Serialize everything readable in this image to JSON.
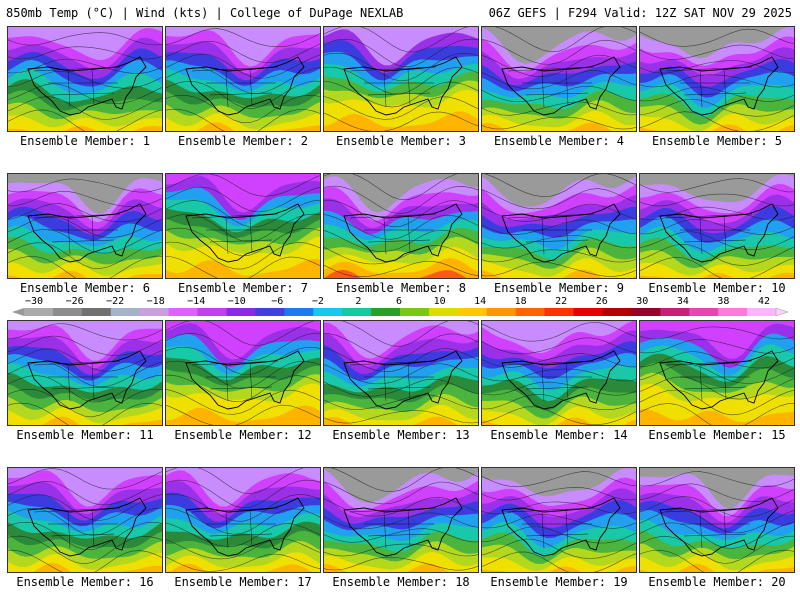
{
  "header": {
    "left_title": "850mb Temp (°C) | Wind (kts) | College of DuPage NEXLAB",
    "right_title": "06Z GEFS | F294 Valid: 12Z SAT NOV 29 2025"
  },
  "member_label_prefix": "Ensemble Member:",
  "members": [
    {
      "number": "1",
      "cold_extent": "moderate"
    },
    {
      "number": "2",
      "cold_extent": "moderate"
    },
    {
      "number": "3",
      "cold_extent": "east-trough"
    },
    {
      "number": "4",
      "cold_extent": "strong"
    },
    {
      "number": "5",
      "cold_extent": "strong"
    },
    {
      "number": "6",
      "cold_extent": "strong"
    },
    {
      "number": "7",
      "cold_extent": "weak"
    },
    {
      "number": "8",
      "cold_extent": "north-only"
    },
    {
      "number": "9",
      "cold_extent": "strong"
    },
    {
      "number": "10",
      "cold_extent": "strong"
    },
    {
      "number": "11",
      "cold_extent": "moderate"
    },
    {
      "number": "12",
      "cold_extent": "weak"
    },
    {
      "number": "13",
      "cold_extent": "moderate"
    },
    {
      "number": "14",
      "cold_extent": "moderate"
    },
    {
      "number": "15",
      "cold_extent": "weak"
    },
    {
      "number": "16",
      "cold_extent": "moderate"
    },
    {
      "number": "17",
      "cold_extent": "moderate"
    },
    {
      "number": "18",
      "cold_extent": "strong"
    },
    {
      "number": "19",
      "cold_extent": "strong"
    },
    {
      "number": "20",
      "cold_extent": "strong"
    }
  ],
  "colorbar": {
    "tick_labels": [
      "-30",
      "-26",
      "-22",
      "-18",
      "-14",
      "-10",
      "-6",
      "-2",
      "2",
      "6",
      "10",
      "14",
      "18",
      "22",
      "26",
      "30",
      "34",
      "38",
      "42"
    ],
    "colors": [
      "#aaaaaa",
      "#8c8c8c",
      "#707070",
      "#a3b3c8",
      "#c8a0e0",
      "#e060ff",
      "#c040f0",
      "#8c28e8",
      "#4040e0",
      "#1e78f0",
      "#14c8f0",
      "#14c8a0",
      "#28a028",
      "#78c814",
      "#dcdc00",
      "#ffc800",
      "#ff9600",
      "#ff6400",
      "#ff3200",
      "#e60000",
      "#b40000",
      "#960028",
      "#c81e78",
      "#e646b4",
      "#ff78dc",
      "#ffb4ff"
    ]
  },
  "palette": {
    "gray": "#9a9a9a",
    "purple_light": "#c98cff",
    "magenta": "#d040ff",
    "violet": "#9a30e8",
    "blue": "#3b3ce0",
    "sky": "#22a0f0",
    "teal": "#18c8a8",
    "green_dark": "#2a8a3a",
    "green": "#4ab43c",
    "yellow_green": "#b4d81e",
    "yellow": "#f0e000",
    "orange": "#ffb400",
    "red": "#ff5a14"
  }
}
